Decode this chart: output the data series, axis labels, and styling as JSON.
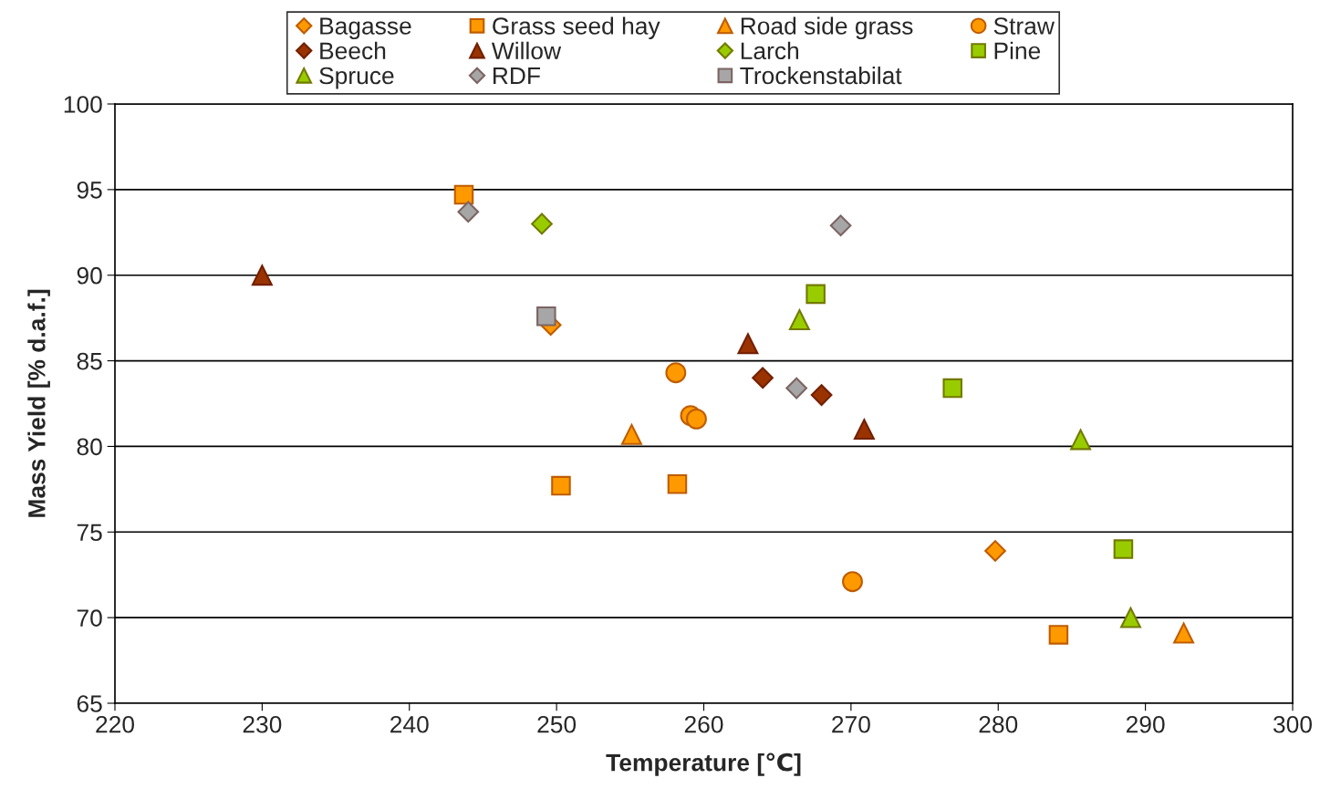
{
  "chart_data": {
    "type": "scatter",
    "xlabel": "Temperature [℃]",
    "ylabel": "Mass Yield [% d.a.f.]",
    "xlim": [
      220,
      300
    ],
    "xticks": [
      220,
      230,
      240,
      250,
      260,
      270,
      280,
      290,
      300
    ],
    "ylim": [
      65,
      100
    ],
    "yticks": [
      65,
      70,
      75,
      80,
      85,
      90,
      95,
      100
    ],
    "grid": "y",
    "legend": "top",
    "series": [
      {
        "name": "Bagasse",
        "color": "#ff9900",
        "marker": "diamond",
        "x": [
          249.6,
          279.8
        ],
        "values": [
          87.1,
          73.9
        ]
      },
      {
        "name": "Grass seed hay",
        "color": "#ff9900",
        "marker": "square",
        "x": [
          243.7,
          250.3,
          258.2,
          284.1
        ],
        "values": [
          94.7,
          77.7,
          77.8,
          69.0
        ]
      },
      {
        "name": "Road side grass",
        "color": "#ff9900",
        "marker": "triangle",
        "x": [
          255.1,
          292.6
        ],
        "values": [
          80.7,
          69.1
        ]
      },
      {
        "name": "Straw",
        "color": "#ff9900",
        "marker": "circle",
        "x": [
          258.1,
          259.1,
          259.5,
          270.1
        ],
        "values": [
          84.3,
          81.8,
          81.6,
          72.1
        ]
      },
      {
        "name": "Beech",
        "color": "#993300",
        "marker": "diamond",
        "x": [
          264.0,
          268.0
        ],
        "values": [
          84.0,
          83.0
        ]
      },
      {
        "name": "Willow",
        "color": "#993300",
        "marker": "triangle",
        "x": [
          230.0,
          263.0,
          270.9
        ],
        "values": [
          90.0,
          86.0,
          81.0
        ]
      },
      {
        "name": "Larch",
        "color": "#99cc00",
        "marker": "diamond",
        "x": [
          249.0
        ],
        "values": [
          93.0
        ]
      },
      {
        "name": "Pine",
        "color": "#99cc00",
        "marker": "square",
        "x": [
          267.6,
          276.9,
          288.5
        ],
        "values": [
          88.9,
          83.4,
          74.0
        ]
      },
      {
        "name": "Spruce",
        "color": "#99cc00",
        "marker": "triangle",
        "x": [
          266.5,
          285.6,
          289.0
        ],
        "values": [
          87.4,
          80.4,
          70.0
        ]
      },
      {
        "name": "RDF",
        "color": "#a6a6a6",
        "marker": "diamond",
        "x": [
          244.0,
          269.3,
          266.3
        ],
        "values": [
          93.7,
          92.9,
          83.4
        ]
      },
      {
        "name": "Trockenstabilat",
        "color": "#a6a6a6",
        "marker": "square",
        "x": [
          249.3
        ],
        "values": [
          87.6
        ]
      }
    ]
  }
}
